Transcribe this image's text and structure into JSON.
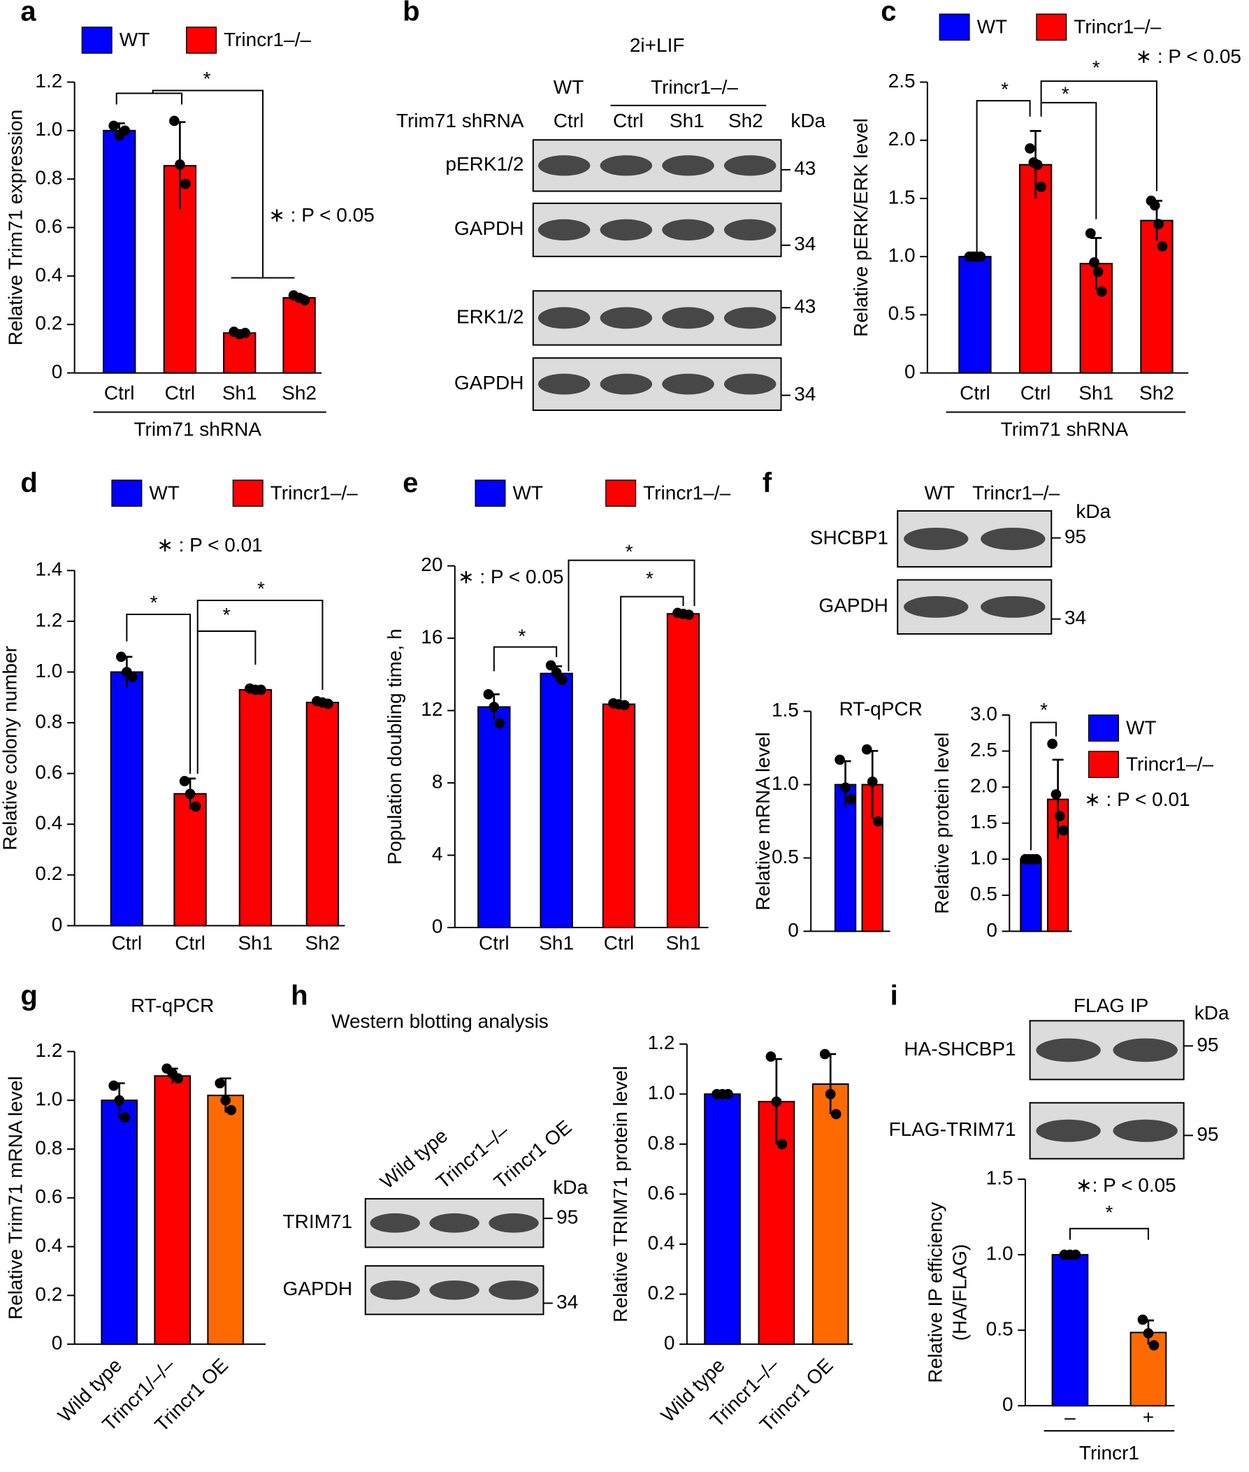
{
  "chart_data": [
    {
      "type": "bar",
      "panel": "a",
      "ylabel": "Relative Trim71 expression",
      "categories": [
        "Ctrl",
        "Ctrl",
        "Sh1",
        "Sh2"
      ],
      "group_label": "Trim71 shRNA",
      "colors": [
        "#0000ff",
        "#ff0000",
        "#ff0000",
        "#ff0000"
      ],
      "values": [
        1.0,
        0.855,
        0.165,
        0.31
      ],
      "errors": [
        0.03,
        0.18,
        0.01,
        0.01
      ],
      "points": [
        [
          1.02,
          0.98,
          1.0
        ],
        [
          1.04,
          0.86,
          0.78
        ],
        [
          0.17,
          0.16,
          0.165
        ],
        [
          0.32,
          0.31,
          0.3
        ]
      ],
      "ylim": [
        0,
        1.2
      ],
      "yticks": [
        0,
        0.2,
        0.4,
        0.6,
        0.8,
        {
          "value": 1,
          "label": "1.0"
        },
        1.2
      ],
      "legend": [
        {
          "name": "WT",
          "color": "#0000ff"
        },
        {
          "name": "Trincr1–/–",
          "color": "#ff0000"
        }
      ],
      "annotations": [
        "*"
      ],
      "p_label": "∗ : P < 0.05"
    },
    {
      "type": "bar",
      "panel": "c",
      "ylabel": "Relative pERK/ERK level",
      "categories": [
        "Ctrl",
        "Ctrl",
        "Sh1",
        "Sh2"
      ],
      "group_label": "Trim71 shRNA",
      "colors": [
        "#0000ff",
        "#ff0000",
        "#ff0000",
        "#ff0000"
      ],
      "values": [
        1.0,
        1.79,
        0.94,
        1.31
      ],
      "errors": [
        0.01,
        0.29,
        0.22,
        0.17
      ],
      "points": [
        [
          1,
          1,
          1,
          1
        ],
        [
          1.93,
          1.81,
          1.79,
          1.6
        ],
        [
          1.2,
          0.95,
          0.87,
          0.7
        ],
        [
          1.48,
          1.44,
          1.28,
          1.09
        ]
      ],
      "ylim": [
        0,
        2.5
      ],
      "yticks": [
        0,
        0.5,
        {
          "value": 1,
          "label": "1.0"
        },
        1.5,
        {
          "value": 2,
          "label": "2.0"
        },
        2.5
      ],
      "legend": [
        {
          "name": "WT",
          "color": "#0000ff"
        },
        {
          "name": "Trincr1–/–",
          "color": "#ff0000"
        }
      ],
      "annotations": [
        "*",
        "*",
        "*"
      ],
      "p_label": "∗ : P < 0.05"
    },
    {
      "type": "bar",
      "panel": "d",
      "ylabel": "Relative colony number",
      "categories": [
        "Ctrl",
        "Ctrl",
        "Sh1",
        "Sh2"
      ],
      "colors": [
        "#0000ff",
        "#ff0000",
        "#ff0000",
        "#ff0000"
      ],
      "values": [
        1.0,
        0.52,
        0.93,
        0.88
      ],
      "errors": [
        0.06,
        0.06,
        0.005,
        0.01
      ],
      "points": [
        [
          1.06,
          1.0,
          0.98
        ],
        [
          0.57,
          0.52,
          0.47
        ],
        [
          0.935,
          0.93,
          0.93
        ],
        [
          0.885,
          0.88,
          0.875
        ]
      ],
      "ylim": [
        0,
        1.4
      ],
      "yticks": [
        0,
        0.2,
        0.4,
        0.6,
        0.8,
        {
          "value": 1,
          "label": "1.0"
        },
        1.2,
        1.4
      ],
      "legend": [
        {
          "name": "WT",
          "color": "#0000ff"
        },
        {
          "name": "Trincr1–/–",
          "color": "#ff0000"
        }
      ],
      "annotations": [
        "*",
        "*",
        "*"
      ],
      "p_label": "∗ : P < 0.01"
    },
    {
      "type": "bar",
      "panel": "e",
      "ylabel": "Population doubling time, h",
      "categories": [
        "Ctrl",
        "Sh1",
        "Ctrl",
        "Sh1"
      ],
      "colors": [
        "#0000ff",
        "#0000ff",
        "#ff0000",
        "#ff0000"
      ],
      "values": [
        12.2,
        14.05,
        12.35,
        17.35
      ],
      "errors": [
        0.7,
        0.4,
        0.1,
        0.1
      ],
      "points": [
        [
          12.9,
          12.2,
          11.3
        ],
        [
          14.5,
          14.1,
          13.7
        ],
        [
          12.4,
          12.35,
          12.3
        ],
        [
          17.4,
          17.35,
          17.3
        ]
      ],
      "ylim": [
        0,
        20
      ],
      "yticks": [
        0,
        4,
        8,
        12,
        16,
        20
      ],
      "legend": [
        {
          "name": "WT",
          "color": "#0000ff"
        },
        {
          "name": "Trincr1–/–",
          "color": "#ff0000"
        }
      ],
      "annotations": [
        "*",
        "*",
        "*"
      ],
      "p_label": "∗ : P < 0.05"
    },
    {
      "type": "bar",
      "title": "RT-qPCR",
      "ylabel": "Relative mRNA level",
      "colors": [
        "#0000ff",
        "#ff0000"
      ],
      "values": [
        1.0,
        1.0
      ],
      "errors": [
        0.16,
        0.23
      ],
      "points": [
        [
          1.17,
          0.98,
          0.9
        ],
        [
          1.24,
          1.02,
          0.75
        ]
      ],
      "ylim": [
        0,
        1.5
      ],
      "yticks": [
        0,
        0.5,
        {
          "value": 1,
          "label": "1.0"
        },
        1.5
      ]
    },
    {
      "type": "bar",
      "ylabel": "Relative protein level",
      "colors": [
        "#0000ff",
        "#ff0000"
      ],
      "values": [
        1.0,
        1.83
      ],
      "errors": [
        0.0,
        0.55
      ],
      "points": [
        [
          1,
          1,
          1,
          1
        ],
        [
          2.6,
          1.9,
          1.6,
          1.4
        ]
      ],
      "ylim": [
        0,
        3
      ],
      "yticks": [
        0,
        0.5,
        {
          "value": 1,
          "label": "1.0"
        },
        1.5,
        {
          "value": 2,
          "label": "2.0"
        },
        2.5,
        {
          "value": 3,
          "label": "3.0"
        }
      ],
      "legend": [
        {
          "name": "WT",
          "color": "#0000ff"
        },
        {
          "name": "Trincr1–/–",
          "color": "#ff0000"
        }
      ],
      "annotations": [
        "*"
      ],
      "p_label": "∗ : P < 0.01"
    },
    {
      "type": "bar",
      "panel": "g",
      "title": "RT-qPCR",
      "ylabel": "Relative Trim71 mRNA level",
      "categories": [
        "Wild type",
        "Trincr1/–/–",
        "Trincr1 OE"
      ],
      "colors": [
        "#0000ff",
        "#ff0000",
        "#ff6a00"
      ],
      "values": [
        1.0,
        1.1,
        1.02
      ],
      "errors": [
        0.07,
        0.03,
        0.07
      ],
      "points": [
        [
          1.06,
          1.0,
          0.93
        ],
        [
          1.13,
          1.11,
          1.09
        ],
        [
          1.07,
          1.0,
          0.96
        ]
      ],
      "ylim": [
        0,
        1.2
      ],
      "yticks": [
        0,
        0.2,
        0.4,
        0.6,
        0.8,
        {
          "value": 1,
          "label": "1.0"
        },
        1.2
      ]
    },
    {
      "type": "bar",
      "ylabel": "Relative TRIM71 protein level",
      "categories": [
        "Wild type",
        "Trincr1–/–",
        "Trincr1 OE"
      ],
      "colors": [
        "#0000ff",
        "#ff0000",
        "#ff6a00"
      ],
      "values": [
        1.0,
        0.97,
        1.04
      ],
      "errors": [
        0.0,
        0.17,
        0.12
      ],
      "points": [
        [
          1,
          1,
          1
        ],
        [
          1.15,
          0.97,
          0.8
        ],
        [
          1.16,
          1.0,
          0.92
        ]
      ],
      "ylim": [
        0,
        1.2
      ],
      "yticks": [
        0,
        0.2,
        0.4,
        0.6,
        0.8,
        {
          "value": 1,
          "label": "1.0"
        },
        1.2
      ]
    },
    {
      "type": "bar",
      "ylabel": [
        "Relative IP efficiency",
        "(HA/FLAG)"
      ],
      "categories": [
        "–",
        "+"
      ],
      "group_label": "Trincr1",
      "colors": [
        "#0000ff",
        "#ff6a00"
      ],
      "values": [
        1.0,
        0.485
      ],
      "errors": [
        0.0,
        0.08
      ],
      "points": [
        [
          1,
          1,
          1
        ],
        [
          0.57,
          0.48,
          0.4
        ]
      ],
      "ylim": [
        0,
        1.5
      ],
      "yticks": [
        0,
        0.5,
        {
          "value": 1,
          "label": "1.0"
        },
        1.5
      ],
      "annotations": [
        "*"
      ],
      "p_label": "∗: P < 0.05"
    }
  ],
  "blots": [
    {
      "panel": "b",
      "title": "2i+LIF",
      "groups": [
        "WT",
        "Trincr1–/–"
      ],
      "row_label": "Trim71 shRNA",
      "lanes": [
        "Ctrl",
        "Ctrl",
        "Sh1",
        "Sh2"
      ],
      "unit": "kDa",
      "rows": [
        {
          "label": "pERK1/2",
          "marker": 43
        },
        {
          "label": "GAPDH",
          "marker": 34
        },
        {
          "label": "ERK1/2",
          "marker": 43
        },
        {
          "label": "GAPDH",
          "marker": 34
        }
      ]
    },
    {
      "panel": "f",
      "lanes": [
        "WT",
        "Trincr1–/–"
      ],
      "unit": "kDa",
      "rows": [
        {
          "label": "SHCBP1",
          "marker": 95
        },
        {
          "label": "GAPDH",
          "marker": 34
        }
      ]
    },
    {
      "panel": "h",
      "title": "Western blotting analysis",
      "lanes": [
        "Wild type",
        "Trincr1–/–",
        "Trincr1 OE"
      ],
      "unit": "kDa",
      "rows": [
        {
          "label": "TRIM71",
          "marker": 95
        },
        {
          "label": "GAPDH",
          "marker": 34
        }
      ]
    },
    {
      "panel": "i",
      "title": "FLAG IP",
      "unit": "kDa",
      "rows": [
        {
          "label": "HA-SHCBP1",
          "marker": 95
        },
        {
          "label": "FLAG-TRIM71",
          "marker": 95
        }
      ]
    }
  ]
}
